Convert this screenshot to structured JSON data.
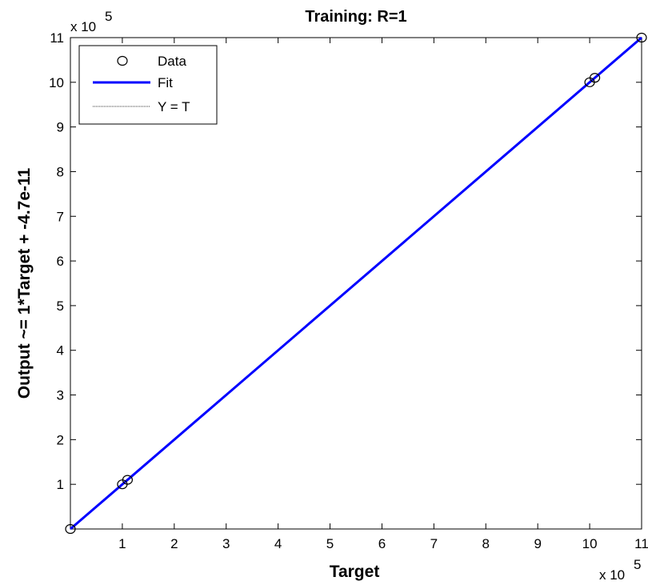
{
  "chart_data": {
    "type": "scatter",
    "title": "Training: R=1",
    "xlabel": "Target",
    "ylabel": "Output ~= 1*Target + -4.7e-11",
    "x_multiplier_label": "x 10",
    "y_multiplier_label": "x 10",
    "multiplier_exponent": "5",
    "xlim": [
      0,
      11
    ],
    "ylim": [
      0,
      11
    ],
    "xticks": [
      1,
      2,
      3,
      4,
      5,
      6,
      7,
      8,
      9,
      10,
      11
    ],
    "yticks": [
      1,
      2,
      3,
      4,
      5,
      6,
      7,
      8,
      9,
      10,
      11
    ],
    "grid": false,
    "legend_position": "top-left",
    "series": [
      {
        "name": "Data",
        "kind": "markers",
        "marker": "circle",
        "color": "#000000",
        "x": [
          0.0,
          1.0,
          1.1,
          10.0,
          10.1,
          11.0
        ],
        "y": [
          0.0,
          1.0,
          1.1,
          10.0,
          10.1,
          11.0
        ]
      },
      {
        "name": "Fit",
        "kind": "line",
        "color": "#0000ff",
        "x": [
          0,
          11
        ],
        "y": [
          0,
          11
        ]
      },
      {
        "name": "Y = T",
        "kind": "line",
        "style": "dotted",
        "color": "#000000",
        "x": [
          0,
          11
        ],
        "y": [
          0,
          11
        ]
      }
    ]
  }
}
